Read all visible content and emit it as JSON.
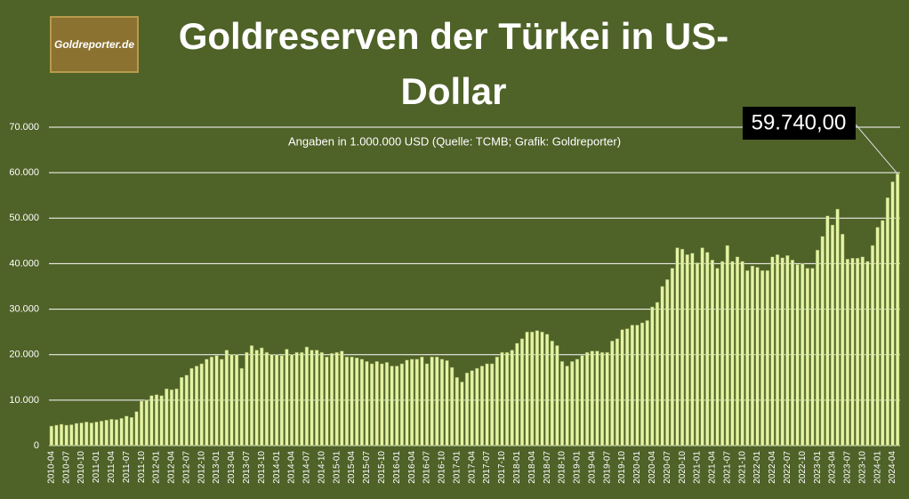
{
  "chart_data": {
    "type": "bar",
    "title": "Goldreserven der Türkei in US-Dollar",
    "subtitle": "Angaben in 1.000.000 USD (Quelle: TCMB; Grafik: Goldreporter)",
    "logo": "Goldreporter.de",
    "annotation": "59.740,00",
    "color": "#e4f4a4",
    "grid": true,
    "ylim": [
      0,
      70000
    ],
    "yticks": [
      0,
      {
        "value": 10000,
        "label": "10.000"
      },
      {
        "value": 20000,
        "label": "20.000"
      },
      {
        "value": 30000,
        "label": "30.000"
      },
      {
        "value": 40000,
        "label": "40.000"
      },
      {
        "value": 50000,
        "label": "50.000"
      },
      {
        "value": 60000,
        "label": "60.000"
      },
      {
        "value": 70000,
        "label": "70.000"
      }
    ],
    "categories": [
      "2010-04",
      null,
      null,
      "2010-07",
      null,
      null,
      "2010-10",
      null,
      null,
      "2011-01",
      null,
      null,
      "2011-04",
      null,
      null,
      "2011-07",
      null,
      null,
      "2011-10",
      null,
      null,
      "2012-01",
      null,
      null,
      "2012-04",
      null,
      null,
      "2012-07",
      null,
      null,
      "2012-10",
      null,
      null,
      "2013-01",
      null,
      null,
      "2013-04",
      null,
      null,
      "2013-07",
      null,
      null,
      "2013-10",
      null,
      null,
      "2014-01",
      null,
      null,
      "2014-04",
      null,
      null,
      "2014-07",
      null,
      null,
      "2014-10",
      null,
      null,
      "2015-01",
      null,
      null,
      "2015-04",
      null,
      null,
      "2015-07",
      null,
      null,
      "2015-10",
      null,
      null,
      "2016-01",
      null,
      null,
      "2016-04",
      null,
      null,
      "2016-07",
      null,
      null,
      "2016-10",
      null,
      null,
      "2017-01",
      null,
      null,
      "2017-04",
      null,
      null,
      "2017-07",
      null,
      null,
      "2017-10",
      null,
      null,
      "2018-01",
      null,
      null,
      "2018-04",
      null,
      null,
      "2018-07",
      null,
      null,
      "2018-10",
      null,
      null,
      "2019-01",
      null,
      null,
      "2019-04",
      null,
      null,
      "2019-07",
      null,
      null,
      "2019-10",
      null,
      null,
      "2020-01",
      null,
      null,
      "2020-04",
      null,
      null,
      "2020-07",
      null,
      null,
      "2020-10",
      null,
      null,
      "2021-01",
      null,
      null,
      "2021-04",
      null,
      null,
      "2021-07",
      null,
      null,
      "2021-10",
      null,
      null,
      "2022-01",
      null,
      null,
      "2022-04",
      null,
      null,
      "2022-07",
      null,
      null,
      "2022-10",
      null,
      null,
      "2023-01",
      null,
      null,
      "2023-04",
      null,
      null,
      "2023-07",
      null,
      null,
      "2023-10",
      null,
      null,
      "2024-01",
      null,
      null,
      "2024-04",
      null
    ],
    "values": [
      4300,
      4500,
      4700,
      4500,
      4600,
      4900,
      5000,
      5200,
      5000,
      5200,
      5400,
      5600,
      5800,
      5700,
      6000,
      6500,
      6200,
      7500,
      9800,
      10000,
      11000,
      11200,
      11000,
      12500,
      12300,
      12500,
      15000,
      15500,
      17000,
      17500,
      18000,
      19000,
      19500,
      19800,
      19000,
      21000,
      20000,
      20000,
      17000,
      20500,
      22000,
      21000,
      21500,
      20500,
      20000,
      20000,
      19800,
      21200,
      20000,
      20500,
      20500,
      21700,
      21000,
      21000,
      20500,
      19500,
      20300,
      20500,
      20800,
      19500,
      19500,
      19300,
      19000,
      18500,
      18000,
      18500,
      18000,
      18300,
      17500,
      17500,
      18000,
      18800,
      19000,
      19000,
      19500,
      18000,
      19500,
      19500,
      19000,
      18700,
      17200,
      15000,
      14000,
      16000,
      16500,
      17000,
      17500,
      18000,
      18000,
      19500,
      20500,
      20500,
      21000,
      22500,
      23500,
      25000,
      25000,
      25300,
      25000,
      24500,
      23000,
      22000,
      18500,
      17500,
      18500,
      19000,
      19800,
      20500,
      20800,
      20800,
      20500,
      20500,
      23000,
      23500,
      25500,
      25700,
      26500,
      26500,
      27000,
      27500,
      30500,
      31500,
      35000,
      36500,
      39000,
      43500,
      43200,
      42000,
      42300,
      40200,
      43500,
      42500,
      40800,
      39000,
      40500,
      44000,
      40500,
      41500,
      40500,
      38500,
      39500,
      39200,
      38500,
      38500,
      41500,
      42000,
      41300,
      41800,
      40800,
      39800,
      40000,
      39000,
      39000,
      43000,
      46000,
      50500,
      48500,
      52000,
      46500,
      41000,
      41200,
      41200,
      41500,
      40500,
      44000,
      48000,
      49500,
      54500,
      58000,
      59740
    ]
  }
}
